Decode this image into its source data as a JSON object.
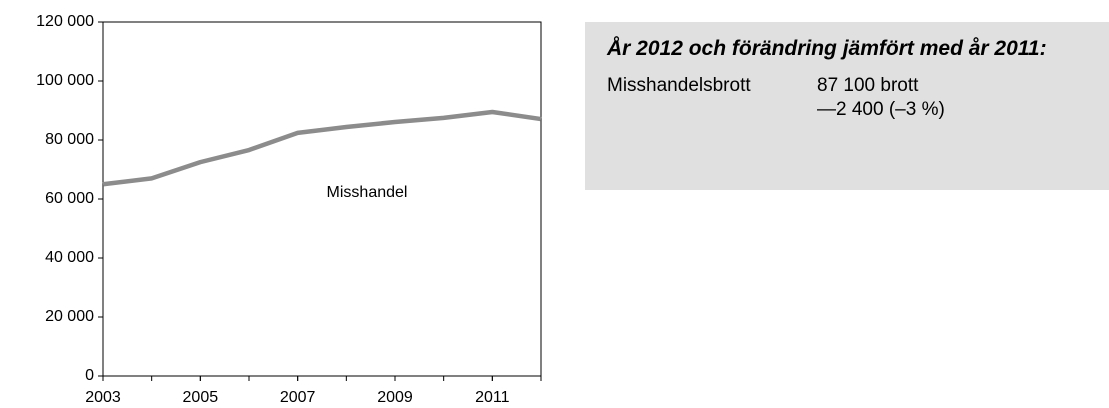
{
  "chart_data": {
    "type": "line",
    "x": [
      2003,
      2004,
      2005,
      2006,
      2007,
      2008,
      2009,
      2010,
      2011,
      2012
    ],
    "series": [
      {
        "name": "Misshandel",
        "color": "#8c8c8c",
        "values": [
          65000,
          67000,
          72500,
          76600,
          82400,
          84400,
          86100,
          87500,
          89500,
          87100
        ]
      }
    ],
    "xlim": [
      2003,
      2012
    ],
    "xticks": [
      2003,
      2005,
      2007,
      2009,
      2011
    ],
    "ylim": [
      0,
      120000
    ],
    "yticks": [
      0,
      {
        "value": 20000,
        "label": "20 000"
      },
      {
        "value": 40000,
        "label": "40 000"
      },
      {
        "value": 60000,
        "label": "60 000"
      },
      {
        "value": 80000,
        "label": "80 000"
      },
      {
        "value": 100000,
        "label": "100 000"
      },
      {
        "value": 120000,
        "label": "120 000"
      }
    ],
    "grid": false
  },
  "info_box": {
    "title": "År 2012 och förändring jämfört med år 2011:",
    "rows": [
      {
        "label": "Misshandelsbrott",
        "lines": [
          "87 100 brott",
          "—2 400 (–3 %)"
        ]
      }
    ]
  }
}
